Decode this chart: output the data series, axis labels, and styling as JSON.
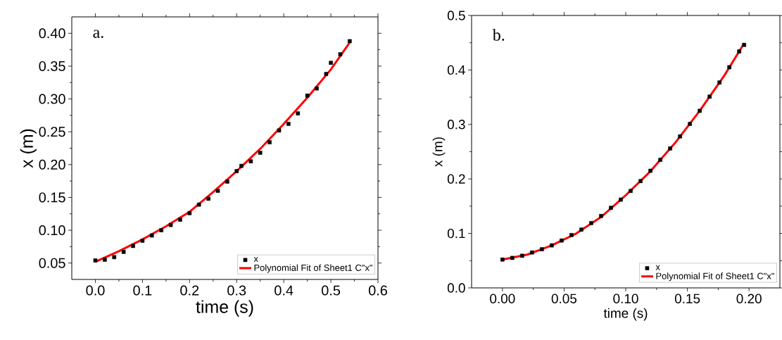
{
  "chart_data": [
    {
      "type": "scatter",
      "xlabel": "time (s)",
      "ylabel": "x (m)",
      "annotations": [
        "a."
      ],
      "legend": "bottom right",
      "xlim": [
        -0.05,
        0.6
      ],
      "ylim": [
        0.025,
        0.425
      ],
      "xticks": [
        {
          "value": 0,
          "label": "0.0"
        },
        {
          "value": 0.1,
          "label": "0.1"
        },
        {
          "value": 0.2,
          "label": "0.2"
        },
        {
          "value": 0.3,
          "label": "0.3"
        },
        {
          "value": 0.4,
          "label": "0.4"
        },
        {
          "value": 0.5,
          "label": "0.5"
        },
        {
          "value": 0.6,
          "label": "0.6"
        }
      ],
      "yticks": [
        {
          "value": 0.05,
          "label": "0.05"
        },
        {
          "value": 0.1,
          "label": "0.10"
        },
        {
          "value": 0.15,
          "label": "0.15"
        },
        {
          "value": 0.2,
          "label": "0.20"
        },
        {
          "value": 0.25,
          "label": "0.25"
        },
        {
          "value": 0.3,
          "label": "0.30"
        },
        {
          "value": 0.35,
          "label": "0.35"
        },
        {
          "value": 0.4,
          "label": "0.40"
        }
      ],
      "series": [
        {
          "name": "x",
          "marker": "square",
          "color": "#000000",
          "x": [
            0,
            0.02,
            0.04,
            0.06,
            0.08,
            0.1,
            0.12,
            0.14,
            0.16,
            0.18,
            0.2,
            0.22,
            0.24,
            0.26,
            0.28,
            0.3,
            0.31,
            0.33,
            0.35,
            0.37,
            0.39,
            0.41,
            0.43,
            0.45,
            0.47,
            0.49,
            0.5,
            0.52,
            0.54
          ],
          "values": [
            0.054,
            0.055,
            0.059,
            0.067,
            0.076,
            0.084,
            0.092,
            0.1,
            0.108,
            0.116,
            0.126,
            0.139,
            0.148,
            0.16,
            0.174,
            0.19,
            0.198,
            0.205,
            0.218,
            0.234,
            0.252,
            0.262,
            0.278,
            0.305,
            0.316,
            0.338,
            0.355,
            0.368,
            0.388
          ]
        },
        {
          "name": "Polynomial Fit of Sheet1 C\"x\"",
          "type": "line",
          "color": "#ff0000",
          "x": [
            0,
            0.05,
            0.1,
            0.15,
            0.2,
            0.25,
            0.3,
            0.35,
            0.4,
            0.45,
            0.5,
            0.54
          ],
          "values": [
            0.052,
            0.068,
            0.086,
            0.106,
            0.128,
            0.158,
            0.19,
            0.224,
            0.262,
            0.302,
            0.345,
            0.386
          ]
        }
      ]
    },
    {
      "type": "scatter",
      "xlabel": "time (s)",
      "ylabel": "x (m)",
      "annotations": [
        "b."
      ],
      "legend": "bottom right",
      "xlim": [
        -0.025,
        0.225
      ],
      "ylim": [
        0,
        0.5
      ],
      "xticks": [
        {
          "value": 0,
          "label": "0.00"
        },
        {
          "value": 0.05,
          "label": "0.05"
        },
        {
          "value": 0.1,
          "label": "0.10"
        },
        {
          "value": 0.15,
          "label": "0.15"
        },
        {
          "value": 0.2,
          "label": "0.20"
        }
      ],
      "yticks": [
        {
          "value": 0,
          "label": "0.0"
        },
        0.1,
        0.2,
        0.3,
        0.4,
        0.5
      ],
      "series": [
        {
          "name": "x",
          "marker": "square",
          "color": "#000000",
          "x": [
            0,
            0.008,
            0.016,
            0.024,
            0.032,
            0.04,
            0.048,
            0.056,
            0.064,
            0.072,
            0.08,
            0.088,
            0.096,
            0.104,
            0.112,
            0.12,
            0.128,
            0.136,
            0.144,
            0.152,
            0.16,
            0.168,
            0.176,
            0.184,
            0.192,
            0.196
          ],
          "values": [
            0.052,
            0.055,
            0.059,
            0.065,
            0.071,
            0.078,
            0.087,
            0.097,
            0.107,
            0.119,
            0.132,
            0.147,
            0.162,
            0.178,
            0.196,
            0.215,
            0.235,
            0.256,
            0.278,
            0.301,
            0.325,
            0.351,
            0.377,
            0.405,
            0.434,
            0.446
          ]
        },
        {
          "name": "Polynomial Fit of Sheet1 C\"x\"",
          "type": "line",
          "color": "#ff0000",
          "x": [
            0,
            0.02,
            0.04,
            0.06,
            0.08,
            0.1,
            0.12,
            0.14,
            0.16,
            0.18,
            0.196
          ],
          "values": [
            0.052,
            0.061,
            0.078,
            0.1,
            0.13,
            0.17,
            0.214,
            0.266,
            0.325,
            0.39,
            0.449
          ]
        }
      ]
    }
  ]
}
